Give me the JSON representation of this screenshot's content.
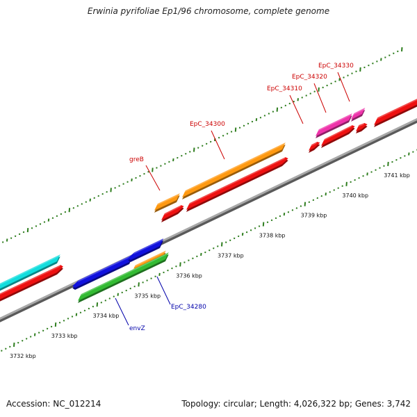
{
  "title": "Erwinia pyrifoliae Ep1/96 chromosome, complete genome",
  "footer": {
    "accession": "Accession: NC_012214",
    "summary": "Topology: circular; Length: 4,026,322 bp; Genes: 3,742"
  },
  "ruler": {
    "ticks": [
      {
        "kbp": 3732,
        "label": "3732 kbp"
      },
      {
        "kbp": 3733,
        "label": "3733 kbp"
      },
      {
        "kbp": 3734,
        "label": "3734 kbp"
      },
      {
        "kbp": 3735,
        "label": "3735 kbp"
      },
      {
        "kbp": 3736,
        "label": "3736 kbp"
      },
      {
        "kbp": 3737,
        "label": "3737 kbp"
      },
      {
        "kbp": 3738,
        "label": "3738 kbp"
      },
      {
        "kbp": 3739,
        "label": "3739 kbp"
      },
      {
        "kbp": 3740,
        "label": "3740 kbp"
      },
      {
        "kbp": 3741,
        "label": "3741 kbp"
      }
    ]
  },
  "gene_labels": [
    {
      "id": "greB",
      "text": "greB",
      "color": "#cc0000"
    },
    {
      "id": "EpC_34300",
      "text": "EpC_34300",
      "color": "#cc0000"
    },
    {
      "id": "EpC_34310",
      "text": "EpC_34310",
      "color": "#cc0000"
    },
    {
      "id": "EpC_34320",
      "text": "EpC_34320",
      "color": "#cc0000"
    },
    {
      "id": "EpC_34330",
      "text": "EpC_34330",
      "color": "#cc0000"
    },
    {
      "id": "envZ",
      "text": "envZ",
      "color": "#0000aa"
    },
    {
      "id": "EpC_34280",
      "text": "EpC_34280",
      "color": "#0000aa"
    }
  ],
  "colors": {
    "backbone": "#8a8a8a",
    "tick": "#2e7d1e",
    "cds": "#ee1111",
    "cyan_feature": "#11dddd",
    "orange_feature": "#ff9911",
    "blue_feature": "#1111dd",
    "green_feature": "#33bb33",
    "magenta_feature": "#ee33aa"
  }
}
